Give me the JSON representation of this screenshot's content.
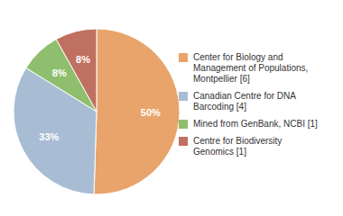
{
  "chart_data": {
    "type": "pie",
    "categories": [
      "Center for Biology and\nManagement of Populations,\nMontpellier [6]",
      "Canadian Centre for DNA\nBarcoding [4]",
      "Mined from GenBank, NCBI [1]",
      "Centre for Biodiversity\nGenomics [1]"
    ],
    "values": [
      50,
      33,
      8,
      8
    ],
    "value_labels": [
      "50%",
      "33%",
      "8%",
      "8%"
    ],
    "colors": [
      "#E8A46A",
      "#A8BDD4",
      "#8FBF6E",
      "#C07060"
    ],
    "data_labels": true,
    "legend": "right"
  }
}
